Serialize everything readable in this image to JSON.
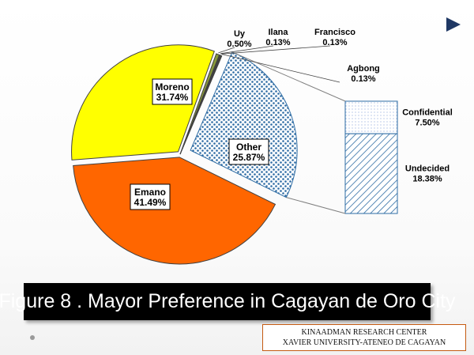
{
  "chart_data": {
    "type": "bar-of-pie",
    "slices": [
      {
        "name": "Emano",
        "value": 41.49,
        "label": "41.49%",
        "color": "#ff6600"
      },
      {
        "name": "Moreno",
        "value": 31.74,
        "label": "31.74%",
        "color": "#ffff00"
      },
      {
        "name": "Uy",
        "value": 0.5,
        "label": "0.50%",
        "color": "#8a9a3b"
      },
      {
        "name": "Ilana",
        "value": 0.13,
        "label": "0.13%",
        "color": "#6e7f2f"
      },
      {
        "name": "Francisco",
        "value": 0.13,
        "label": "0.13%",
        "color": "#5d6e25"
      },
      {
        "name": "Agbong",
        "value": 0.13,
        "label": "0.13%",
        "color": "#4e5e1e"
      },
      {
        "name": "Other",
        "value": 25.87,
        "label": "25.87%",
        "color": "#1f4e79"
      }
    ],
    "breakdown": {
      "of": "Other",
      "segments": [
        {
          "name": "Confidential",
          "value": 7.5,
          "label": "7.50%"
        },
        {
          "name": "Undecided",
          "value": 18.38,
          "label": "18.38%"
        }
      ]
    }
  },
  "caption": "Figure 8 . Mayor Preference in Cagayan de Oro City",
  "credit": {
    "line1": "KINAADMAN RESEARCH CENTER",
    "line2": "XAVIER UNIVERSITY-ATENEO DE CAGAYAN"
  }
}
